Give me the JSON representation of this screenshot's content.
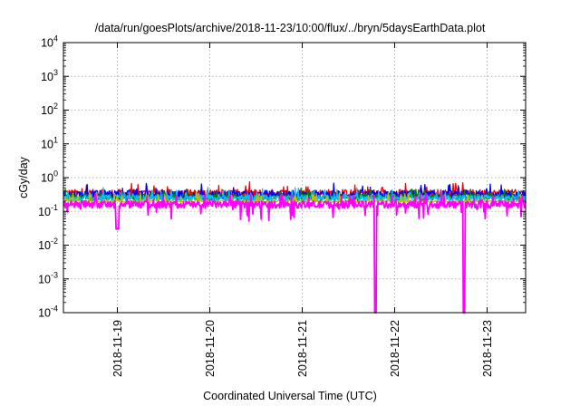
{
  "chart_data": {
    "type": "line",
    "title": "/data/run/goesPlots/archive/2018-11-23/10:00/flux/../bryn/5daysEarthData.plot",
    "xlabel": "Coordinated Universal Time (UTC)",
    "ylabel": "cGy/day",
    "yscale": "log",
    "grid": true,
    "ylim": [
      0.0001,
      10000
    ],
    "yticks": [
      {
        "value": 0.0001,
        "base": "10",
        "exp": "-4"
      },
      {
        "value": 0.001,
        "base": "10",
        "exp": "-3"
      },
      {
        "value": 0.01,
        "base": "10",
        "exp": "-2"
      },
      {
        "value": 0.1,
        "base": "10",
        "exp": "-1"
      },
      {
        "value": 1,
        "base": "10",
        "exp": "0"
      },
      {
        "value": 10,
        "base": "10",
        "exp": "1"
      },
      {
        "value": 100,
        "base": "10",
        "exp": "2"
      },
      {
        "value": 1000,
        "base": "10",
        "exp": "3"
      },
      {
        "value": 10000,
        "base": "10",
        "exp": "4"
      }
    ],
    "xlim": [
      "2018-11-18 10:00",
      "2018-11-23 10:00"
    ],
    "xticks": [
      {
        "value": "2018-11-19 00:00",
        "label": "2018-11-19"
      },
      {
        "value": "2018-11-20 00:00",
        "label": "2018-11-20"
      },
      {
        "value": "2018-11-21 00:00",
        "label": "2018-11-21"
      },
      {
        "value": "2018-11-22 00:00",
        "label": "2018-11-22"
      },
      {
        "value": "2018-11-23 00:00",
        "label": "2018-11-23"
      }
    ],
    "series": [
      {
        "color": "#ff0000",
        "baseline": 0.34,
        "noise": 0.28
      },
      {
        "color": "#0000ff",
        "baseline": 0.31,
        "noise": 0.3
      },
      {
        "color": "#008000",
        "baseline": 0.26,
        "noise": 0.22
      },
      {
        "color": "#00c0ff",
        "baseline": 0.25,
        "noise": 0.2
      },
      {
        "color": "#c0c000",
        "baseline": 0.2,
        "noise": 0.08
      },
      {
        "color": "#ff00ff",
        "baseline": 0.16,
        "noise": 0.25,
        "dropouts": [
          {
            "start": "2018-11-21 18:50",
            "end": "2018-11-21 19:10",
            "value": 0.0001
          },
          {
            "start": "2018-11-22 17:50",
            "end": "2018-11-22 18:10",
            "value": 0.0001
          }
        ]
      }
    ]
  }
}
